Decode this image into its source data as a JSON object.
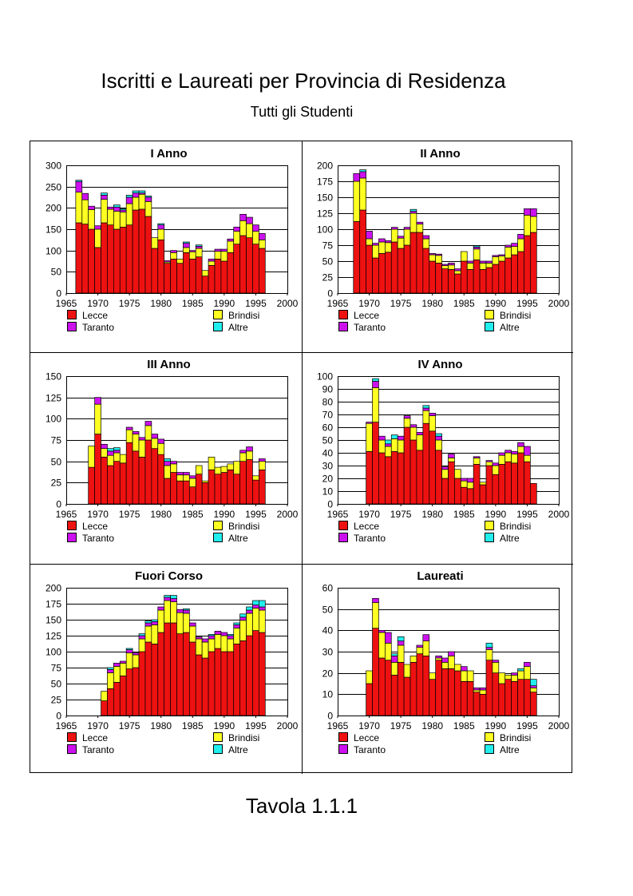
{
  "title": "Iscritti e Laureati per Provincia di Residenza",
  "subtitle": "Tutti gli Studenti",
  "table_label": "Tavola 1.1.1",
  "colors": {
    "Lecce": "#ee1111",
    "Brindisi": "#ffff22",
    "Taranto": "#cc11ee",
    "Altre": "#22eeee"
  },
  "chart_data": [
    {
      "type": "bar",
      "stacked": true,
      "title": "I Anno",
      "xlim": [
        1965,
        2000
      ],
      "ylim": [
        0,
        300
      ],
      "ytick_step": 50,
      "xticks": [
        "1965",
        "1970",
        "1975",
        "1980",
        "1985",
        "1990",
        "1995",
        "2000"
      ],
      "legend": [
        "Lecce",
        "Brindisi",
        "Taranto",
        "Altre"
      ],
      "x": [
        1967,
        1968,
        1969,
        1970,
        1971,
        1972,
        1973,
        1974,
        1975,
        1976,
        1977,
        1978,
        1979,
        1980,
        1981,
        1982,
        1983,
        1984,
        1985,
        1986,
        1987,
        1988,
        1989,
        1990,
        1991,
        1992,
        1993,
        1994,
        1995,
        1996
      ],
      "series": [
        {
          "name": "Lecce",
          "values": [
            165,
            162,
            150,
            107,
            165,
            160,
            150,
            155,
            160,
            195,
            197,
            180,
            105,
            125,
            70,
            80,
            70,
            95,
            80,
            85,
            40,
            65,
            80,
            75,
            95,
            115,
            135,
            130,
            115,
            105
          ]
        },
        {
          "name": "Brindisi",
          "values": [
            72,
            57,
            46,
            43,
            55,
            37,
            42,
            35,
            50,
            30,
            35,
            35,
            25,
            25,
            3,
            15,
            10,
            12,
            17,
            20,
            13,
            10,
            18,
            23,
            27,
            30,
            35,
            33,
            30,
            20
          ]
        },
        {
          "name": "Taranto",
          "values": [
            25,
            15,
            8,
            8,
            10,
            5,
            10,
            5,
            15,
            10,
            3,
            10,
            0,
            10,
            3,
            5,
            0,
            10,
            3,
            5,
            0,
            5,
            5,
            5,
            5,
            10,
            15,
            15,
            15,
            15
          ]
        },
        {
          "name": "Altre",
          "values": [
            3,
            0,
            0,
            0,
            5,
            0,
            5,
            3,
            5,
            5,
            5,
            3,
            0,
            3,
            0,
            0,
            0,
            3,
            0,
            3,
            0,
            0,
            0,
            0,
            0,
            0,
            0,
            0,
            0,
            0
          ]
        }
      ]
    },
    {
      "type": "bar",
      "stacked": true,
      "title": "II Anno",
      "xlim": [
        1965,
        2000
      ],
      "ylim": [
        0,
        200
      ],
      "ytick_step": 25,
      "xticks": [
        "1965",
        "1970",
        "1975",
        "1980",
        "1985",
        "1990",
        "1995",
        "2000"
      ],
      "legend": [
        "Lecce",
        "Brindisi",
        "Taranto",
        "Altre"
      ],
      "x": [
        1968,
        1969,
        1970,
        1971,
        1972,
        1973,
        1974,
        1975,
        1976,
        1977,
        1978,
        1979,
        1980,
        1981,
        1982,
        1983,
        1984,
        1985,
        1986,
        1987,
        1988,
        1989,
        1990,
        1991,
        1992,
        1993,
        1994,
        1995,
        1996
      ],
      "series": [
        {
          "name": "Lecce",
          "values": [
            112,
            130,
            75,
            55,
            62,
            64,
            80,
            70,
            75,
            95,
            95,
            70,
            50,
            47,
            38,
            37,
            30,
            50,
            37,
            52,
            37,
            40,
            45,
            50,
            55,
            60,
            65,
            90,
            95
          ]
        },
        {
          "name": "Brindisi",
          "values": [
            63,
            50,
            10,
            20,
            18,
            15,
            20,
            16,
            25,
            30,
            13,
            15,
            10,
            12,
            5,
            7,
            5,
            15,
            10,
            17,
            10,
            7,
            12,
            8,
            17,
            13,
            20,
            32,
            25
          ]
        },
        {
          "name": "Taranto",
          "values": [
            12,
            10,
            12,
            3,
            5,
            3,
            3,
            3,
            3,
            3,
            3,
            5,
            2,
            2,
            2,
            3,
            3,
            0,
            3,
            3,
            3,
            3,
            2,
            2,
            3,
            5,
            7,
            10,
            12
          ]
        },
        {
          "name": "Altre",
          "values": [
            0,
            3,
            0,
            0,
            0,
            0,
            0,
            0,
            0,
            3,
            0,
            0,
            0,
            0,
            0,
            0,
            0,
            0,
            0,
            2,
            0,
            0,
            0,
            0,
            0,
            0,
            0,
            0,
            0
          ]
        }
      ]
    },
    {
      "type": "bar",
      "stacked": true,
      "title": "III Anno",
      "xlim": [
        1965,
        2000
      ],
      "ylim": [
        0,
        150
      ],
      "ytick_step": 25,
      "xticks": [
        "1965",
        "1970",
        "1975",
        "1980",
        "1985",
        "1990",
        "1995",
        "2000"
      ],
      "legend": [
        "Lecce",
        "Brindisi",
        "Taranto",
        "Altre"
      ],
      "x": [
        1969,
        1970,
        1971,
        1972,
        1973,
        1974,
        1975,
        1976,
        1977,
        1978,
        1979,
        1980,
        1981,
        1982,
        1983,
        1984,
        1985,
        1986,
        1987,
        1988,
        1989,
        1990,
        1991,
        1992,
        1993,
        1994,
        1995,
        1996
      ],
      "series": [
        {
          "name": "Lecce",
          "values": [
            43,
            82,
            55,
            45,
            50,
            48,
            72,
            62,
            55,
            75,
            65,
            58,
            30,
            37,
            27,
            27,
            20,
            35,
            25,
            40,
            35,
            37,
            40,
            35,
            50,
            52,
            28,
            40
          ]
        },
        {
          "name": "Brindisi",
          "values": [
            25,
            35,
            10,
            12,
            10,
            10,
            15,
            20,
            20,
            17,
            12,
            13,
            15,
            10,
            7,
            7,
            10,
            10,
            2,
            15,
            8,
            7,
            7,
            15,
            10,
            10,
            5,
            10
          ]
        },
        {
          "name": "Taranto",
          "values": [
            0,
            8,
            5,
            5,
            3,
            0,
            3,
            3,
            3,
            5,
            5,
            5,
            5,
            3,
            3,
            3,
            3,
            0,
            0,
            0,
            0,
            0,
            0,
            0,
            3,
            5,
            0,
            3
          ]
        },
        {
          "name": "Altre",
          "values": [
            0,
            0,
            0,
            3,
            3,
            0,
            0,
            0,
            0,
            0,
            0,
            0,
            3,
            0,
            0,
            0,
            0,
            0,
            0,
            0,
            0,
            0,
            0,
            0,
            0,
            0,
            0,
            0
          ]
        }
      ]
    },
    {
      "type": "bar",
      "stacked": true,
      "title": "IV Anno",
      "xlim": [
        1965,
        2000
      ],
      "ylim": [
        0,
        100
      ],
      "ytick_step": 10,
      "xticks": [
        "1965",
        "1970",
        "1975",
        "1980",
        "1985",
        "1990",
        "1995",
        "2000"
      ],
      "legend": [
        "Lecce",
        "Brindisi",
        "Taranto",
        "Altre"
      ],
      "x": [
        1970,
        1971,
        1972,
        1973,
        1974,
        1975,
        1976,
        1977,
        1978,
        1979,
        1980,
        1981,
        1982,
        1983,
        1984,
        1985,
        1986,
        1987,
        1988,
        1989,
        1990,
        1991,
        1992,
        1993,
        1994,
        1995,
        1996
      ],
      "series": [
        {
          "name": "Lecce",
          "values": [
            41,
            64,
            40,
            37,
            41,
            40,
            60,
            50,
            42,
            63,
            57,
            42,
            20,
            33,
            20,
            13,
            12,
            31,
            15,
            30,
            23,
            31,
            33,
            32,
            40,
            33,
            16
          ]
        },
        {
          "name": "Brindisi",
          "values": [
            22,
            27,
            10,
            8,
            10,
            10,
            7,
            10,
            12,
            10,
            12,
            8,
            7,
            3,
            7,
            5,
            5,
            5,
            2,
            3,
            7,
            7,
            7,
            7,
            5,
            5,
            0
          ]
        },
        {
          "name": "Taranto",
          "values": [
            1,
            5,
            3,
            2,
            0,
            3,
            2,
            2,
            2,
            2,
            2,
            3,
            2,
            3,
            0,
            2,
            3,
            1,
            0,
            1,
            2,
            2,
            2,
            2,
            3,
            7,
            0
          ]
        },
        {
          "name": "Altre",
          "values": [
            0,
            2,
            0,
            3,
            3,
            0,
            0,
            0,
            0,
            2,
            0,
            2,
            0,
            0,
            0,
            0,
            0,
            0,
            0,
            0,
            0,
            0,
            0,
            0,
            0,
            0,
            0
          ]
        }
      ]
    },
    {
      "type": "bar",
      "stacked": true,
      "title": "Fuori Corso",
      "xlim": [
        1965,
        2000
      ],
      "ylim": [
        0,
        200
      ],
      "ytick_step": 25,
      "xticks": [
        "1965",
        "1970",
        "1975",
        "1980",
        "1985",
        "1990",
        "1995",
        "2000"
      ],
      "legend": [
        "Lecce",
        "Brindisi",
        "Taranto",
        "Altre"
      ],
      "x": [
        1971,
        1972,
        1973,
        1974,
        1975,
        1976,
        1977,
        1978,
        1979,
        1980,
        1981,
        1982,
        1983,
        1984,
        1985,
        1986,
        1987,
        1988,
        1989,
        1990,
        1991,
        1992,
        1993,
        1994,
        1995,
        1996
      ],
      "series": [
        {
          "name": "Lecce",
          "values": [
            23,
            42,
            52,
            62,
            73,
            75,
            100,
            115,
            112,
            130,
            145,
            145,
            128,
            130,
            115,
            95,
            90,
            100,
            105,
            100,
            100,
            112,
            117,
            125,
            133,
            130
          ]
        },
        {
          "name": "Brindisi",
          "values": [
            15,
            25,
            25,
            20,
            25,
            20,
            20,
            25,
            30,
            35,
            35,
            33,
            33,
            30,
            25,
            25,
            25,
            20,
            22,
            25,
            20,
            25,
            32,
            35,
            35,
            35
          ]
        },
        {
          "name": "Taranto",
          "values": [
            0,
            5,
            5,
            3,
            5,
            3,
            5,
            5,
            5,
            5,
            5,
            5,
            5,
            5,
            5,
            3,
            5,
            5,
            5,
            5,
            5,
            5,
            5,
            5,
            5,
            5
          ]
        },
        {
          "name": "Altre",
          "values": [
            0,
            3,
            0,
            0,
            2,
            0,
            3,
            3,
            3,
            0,
            3,
            5,
            0,
            2,
            0,
            0,
            0,
            2,
            0,
            0,
            2,
            3,
            5,
            5,
            7,
            10
          ]
        }
      ]
    },
    {
      "type": "bar",
      "stacked": true,
      "title": "Laureati",
      "xlim": [
        1965,
        2000
      ],
      "ylim": [
        0,
        60
      ],
      "ytick_step": 10,
      "xticks": [
        "1965",
        "1970",
        "1975",
        "1980",
        "1985",
        "1990",
        "1995",
        "2000"
      ],
      "legend": [
        "Lecce",
        "Brindisi",
        "Taranto",
        "Altre"
      ],
      "x": [
        1970,
        1971,
        1972,
        1973,
        1974,
        1975,
        1976,
        1977,
        1978,
        1979,
        1980,
        1981,
        1982,
        1983,
        1984,
        1985,
        1986,
        1987,
        1988,
        1989,
        1990,
        1991,
        1992,
        1993,
        1994,
        1995,
        1996
      ],
      "series": [
        {
          "name": "Lecce",
          "values": [
            15,
            41,
            27,
            26,
            19,
            25,
            18,
            25,
            29,
            28,
            17,
            26,
            22,
            22,
            21,
            16,
            16,
            11,
            10,
            26,
            20,
            15,
            17,
            16,
            17,
            17,
            11
          ]
        },
        {
          "name": "Brindisi",
          "values": [
            6,
            12,
            12,
            8,
            6,
            8,
            6,
            3,
            3,
            7,
            3,
            1,
            3,
            6,
            3,
            5,
            5,
            1,
            2,
            5,
            5,
            5,
            2,
            3,
            4,
            6,
            2
          ]
        },
        {
          "name": "Taranto",
          "values": [
            0,
            2,
            1,
            5,
            3,
            2,
            0,
            0,
            1,
            3,
            0,
            1,
            2,
            2,
            0,
            2,
            0,
            1,
            1,
            1,
            1,
            0,
            0,
            1,
            0,
            2,
            1
          ]
        },
        {
          "name": "Altre",
          "values": [
            0,
            0,
            0,
            0,
            1,
            2,
            0,
            0,
            0,
            0,
            0,
            0,
            0,
            0,
            0,
            0,
            0,
            0,
            0,
            2,
            0,
            0,
            0,
            0,
            1,
            0,
            3
          ]
        }
      ]
    }
  ]
}
